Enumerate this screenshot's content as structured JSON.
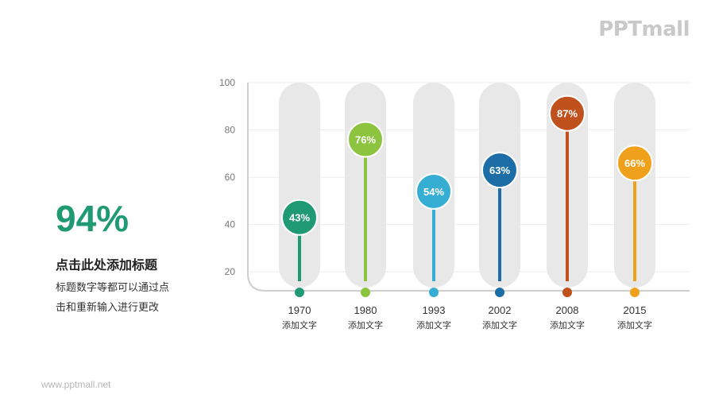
{
  "logo": {
    "text": "PPTmall"
  },
  "left_panel": {
    "stat": "94%",
    "title": "点击此处添加标题",
    "desc_line1": "标题数字等都可以通过点",
    "desc_line2": "击和重新输入进行更改"
  },
  "footer": {
    "url": "www.pptmall.net"
  },
  "colors": {
    "track": "#e8e8e8",
    "axis": "#cfcfcf",
    "grid": "#ececec"
  },
  "chart_data": {
    "type": "scatter",
    "title": "",
    "xlabel": "",
    "ylabel": "",
    "ylim": [
      12,
      100
    ],
    "yticks": [
      20,
      40,
      60,
      80,
      100
    ],
    "grid": true,
    "categories": [
      "1970",
      "1980",
      "1993",
      "2002",
      "2008",
      "2015"
    ],
    "sublabels": [
      "添加文字",
      "添加文字",
      "添加文字",
      "添加文字",
      "添加文字",
      "添加文字"
    ],
    "values": [
      43,
      76,
      54,
      63,
      87,
      66
    ],
    "value_labels": [
      "43%",
      "76%",
      "54%",
      "63%",
      "87%",
      "66%"
    ],
    "colors": [
      "#1f9a73",
      "#8cc43f",
      "#36aed4",
      "#1d6ea6",
      "#c0501c",
      "#f0a11c"
    ]
  }
}
